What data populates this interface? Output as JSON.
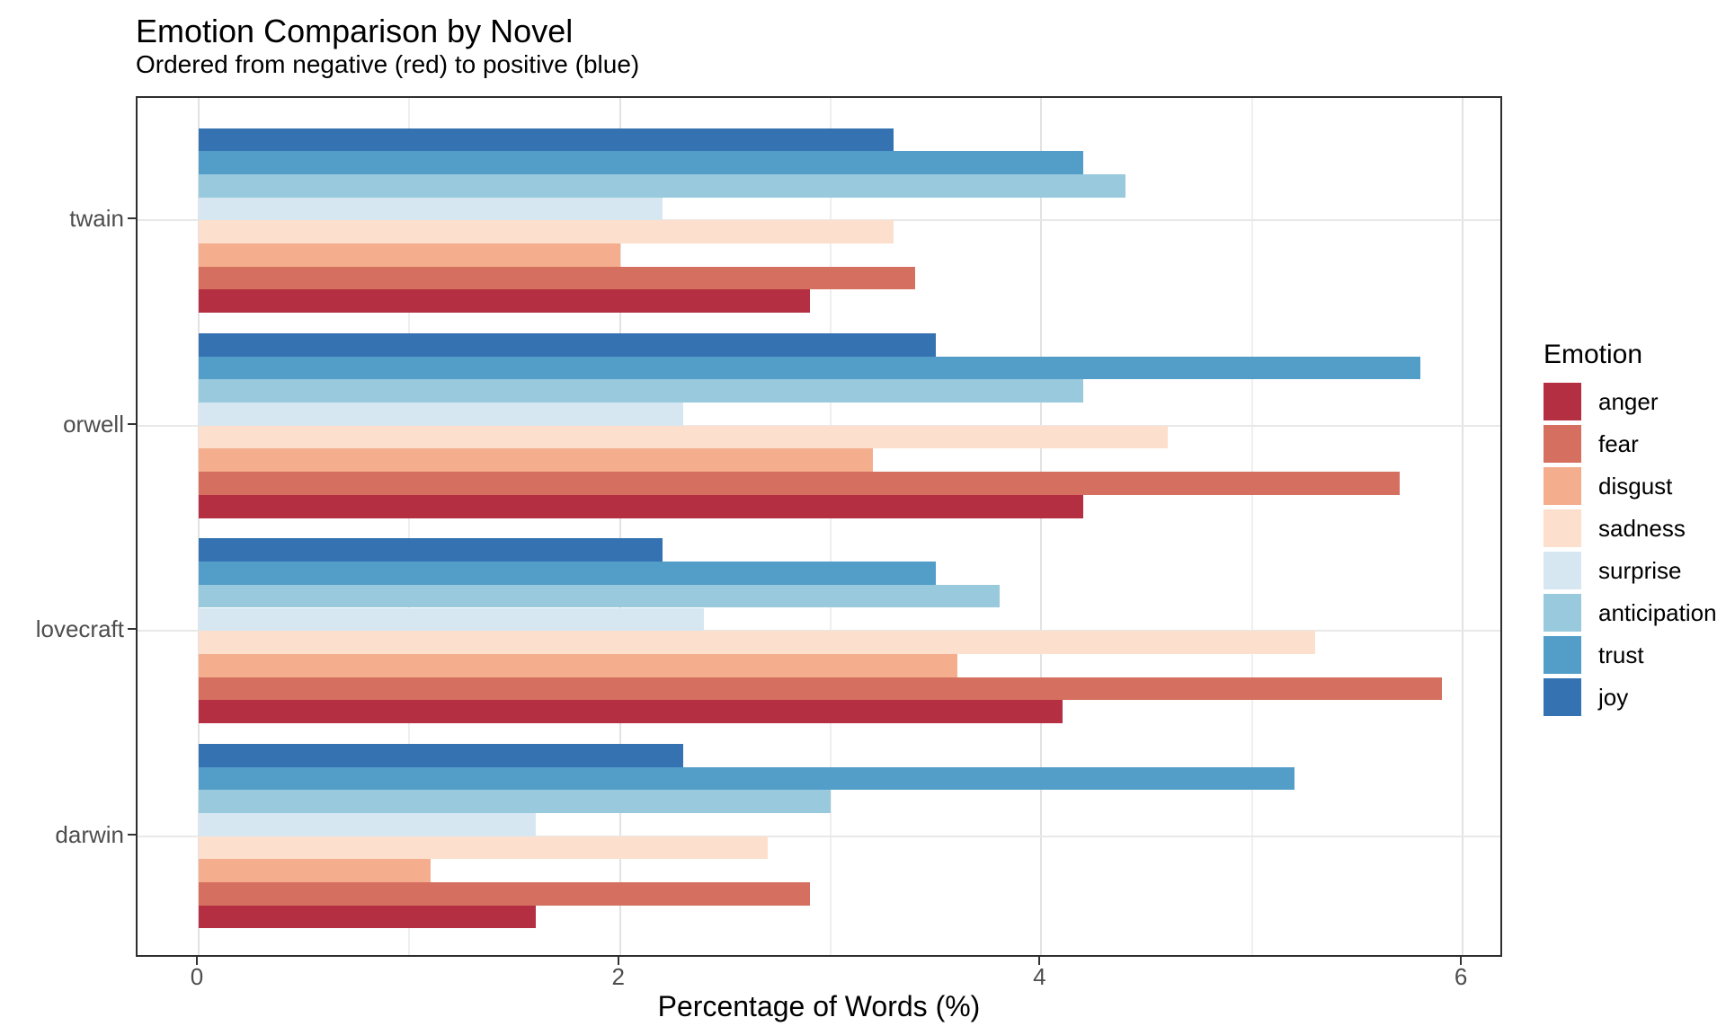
{
  "title": "Emotion Comparison by Novel",
  "subtitle": "Ordered from negative (red) to positive (blue)",
  "chart_data": {
    "type": "bar",
    "orientation": "horizontal",
    "title": "Emotion Comparison by Novel",
    "subtitle": "Ordered from negative (red) to positive (blue)",
    "xlabel": "Percentage of Words (%)",
    "ylabel": "",
    "xlim": [
      0,
      6.2
    ],
    "x_ticks": [
      0,
      2,
      4,
      6
    ],
    "x_minor_gridlines": [
      1,
      3,
      5
    ],
    "grid": true,
    "categories": [
      "twain",
      "orwell",
      "lovecraft",
      "darwin"
    ],
    "bar_order_top_to_bottom": [
      "joy",
      "trust",
      "anticipation",
      "surprise",
      "sadness",
      "disgust",
      "fear",
      "anger"
    ],
    "legend": {
      "title": "Emotion",
      "position": "right"
    },
    "series": [
      {
        "name": "anger",
        "color": "#b52f42",
        "values": [
          2.9,
          4.2,
          4.1,
          1.6
        ]
      },
      {
        "name": "fear",
        "color": "#d56f5f",
        "values": [
          3.4,
          5.7,
          5.9,
          2.9
        ]
      },
      {
        "name": "disgust",
        "color": "#f4ad8d",
        "values": [
          2.0,
          3.2,
          3.6,
          1.1
        ]
      },
      {
        "name": "sadness",
        "color": "#fcdfcc",
        "values": [
          3.3,
          4.6,
          5.3,
          2.7
        ]
      },
      {
        "name": "surprise",
        "color": "#d6e7f2",
        "values": [
          2.2,
          2.3,
          2.4,
          1.6
        ]
      },
      {
        "name": "anticipation",
        "color": "#98c9dd",
        "values": [
          4.4,
          4.2,
          3.8,
          3.0
        ]
      },
      {
        "name": "trust",
        "color": "#539ec9",
        "values": [
          4.2,
          5.8,
          3.5,
          5.2
        ]
      },
      {
        "name": "joy",
        "color": "#3572b2",
        "values": [
          3.3,
          3.5,
          2.2,
          2.3
        ]
      }
    ]
  }
}
